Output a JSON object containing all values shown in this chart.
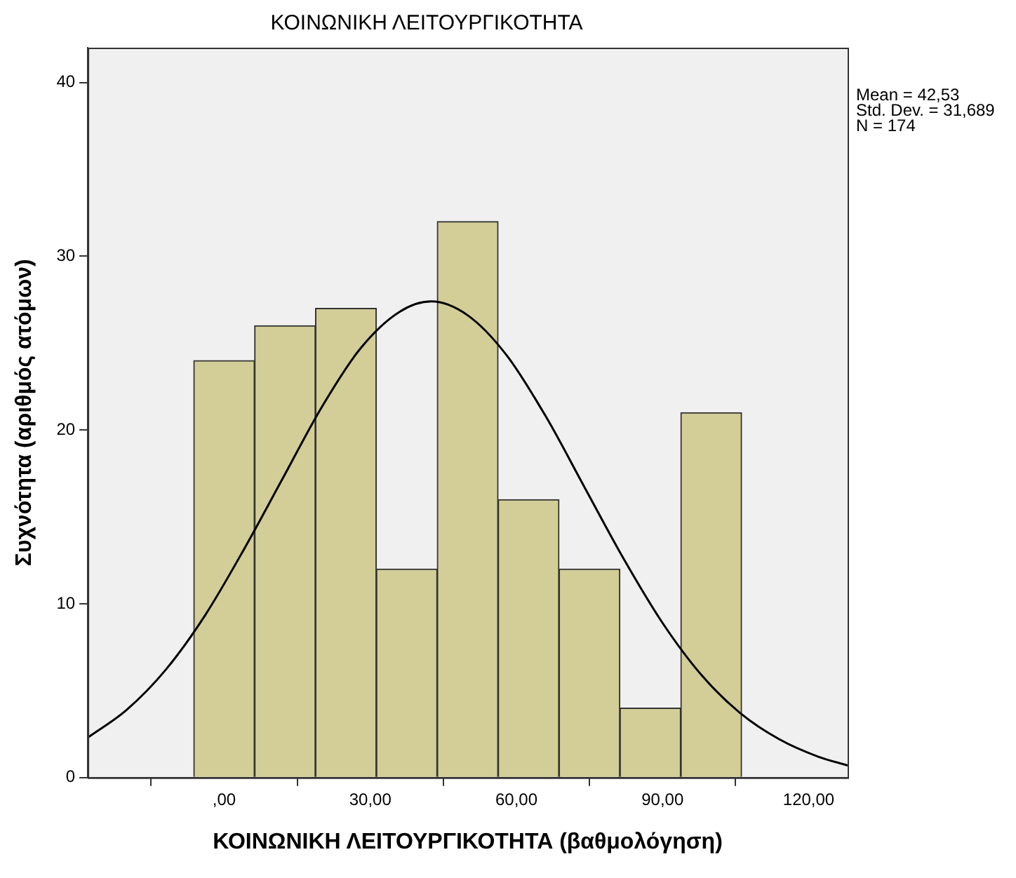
{
  "chart_data": {
    "type": "histogram",
    "title": "ΚΟΙΝΩΝΙΚΗ ΛΕΙΤΟΥΡΓΙΚΟΤΗΤΑ",
    "xlabel": "ΚΟΙΝΩΝΙΚΗ ΛΕΙΤΟΥΡΓΙΚΟΤΗΤΑ (βαθμολόγηση)",
    "ylabel": "Συχνότητα (αριθμός ατόμων)",
    "bins": [
      -6.25,
      6.25,
      18.75,
      31.25,
      43.75,
      56.25,
      68.75,
      81.25,
      93.75,
      106.25
    ],
    "values": [
      24,
      26,
      27,
      12,
      32,
      16,
      12,
      4,
      21
    ],
    "color": "#d3ce97",
    "series": [
      {
        "type": "line",
        "color": "#000000",
        "x": [
          -28,
          -20,
          -12,
          -4,
          4,
          12,
          20,
          28,
          36,
          42.53,
          50,
          58,
          66,
          74,
          82,
          90,
          98,
          106,
          114,
          122,
          128
        ],
        "values": [
          2.3,
          3.9,
          6.2,
          9.3,
          13.1,
          17.2,
          21.3,
          24.7,
          26.8,
          27.4,
          26.6,
          24.3,
          20.8,
          16.7,
          12.6,
          8.9,
          5.9,
          3.7,
          2.2,
          1.2,
          0.7
        ]
      }
    ],
    "xlim": [
      -28,
      128
    ],
    "xticks": [
      {
        "value": 0,
        "label": ",00"
      },
      {
        "value": 30,
        "label": "30,00"
      },
      {
        "value": 60,
        "label": "60,00"
      },
      {
        "value": 90,
        "label": "90,00"
      },
      {
        "value": 120,
        "label": "120,00"
      }
    ],
    "ylim": [
      0,
      42
    ],
    "yticks": [
      0,
      10,
      20,
      30,
      40
    ],
    "grid": false,
    "legend": false,
    "marker": "none",
    "line_style": "solid",
    "annotations": [
      "Mean = 42,53",
      "Std. Dev. = 31,689",
      "N = 174"
    ]
  }
}
